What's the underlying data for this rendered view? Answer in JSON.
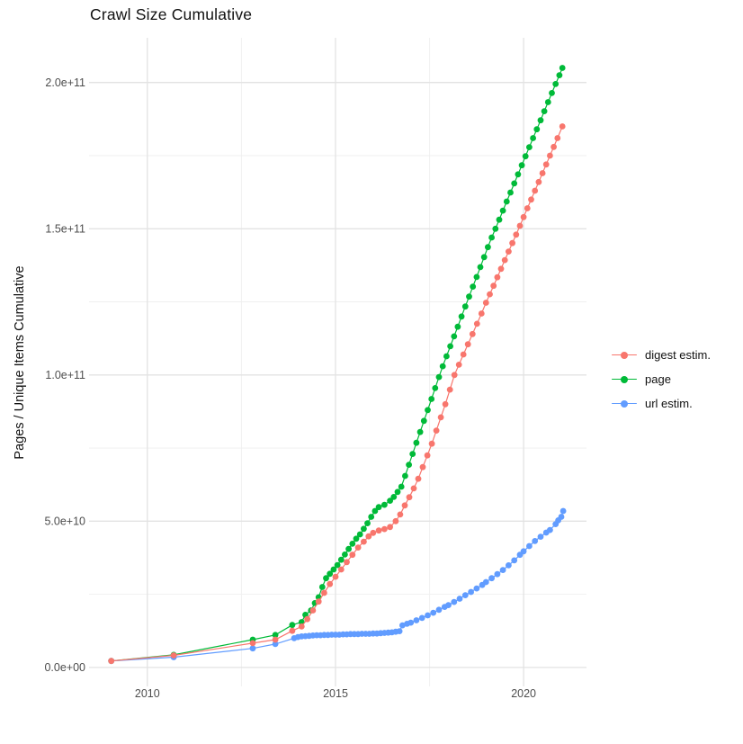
{
  "title": "Crawl Size Cumulative",
  "colors": {
    "digest": "#F8766D",
    "page": "#00BA38",
    "url": "#619CFF",
    "grid_major": "#E3E3E3",
    "grid_minor": "#EFEFEF",
    "tick_label": "#4D4D4D",
    "text": "#111111",
    "background": "#FFFFFF"
  },
  "legend": {
    "position": "right",
    "items": [
      {
        "label": "digest estim.",
        "color": "#F8766D"
      },
      {
        "label": "page",
        "color": "#00BA38"
      },
      {
        "label": "url estim.",
        "color": "#619CFF"
      }
    ]
  },
  "chart_data": {
    "type": "line",
    "mark": "line+point",
    "title": "Crawl Size Cumulative",
    "xlabel": "",
    "ylabel": "Pages / Unique Items Cumulative",
    "value_unit": "1e9 pages (y values below are billions)",
    "x_axis": {
      "ticks": [
        2010,
        2015,
        2020
      ],
      "minor": [
        2012.5,
        2017.5
      ],
      "lim": [
        2008.45,
        2021.67
      ]
    },
    "y_axis": {
      "ticks": [
        {
          "v": 0,
          "label": "0.0e+00"
        },
        {
          "v": 50,
          "label": "5.0e+10"
        },
        {
          "v": 100,
          "label": "1.0e+11"
        },
        {
          "v": 150,
          "label": "1.5e+11"
        },
        {
          "v": 200,
          "label": "2.0e+11"
        }
      ],
      "minor": [
        25,
        75,
        125,
        175
      ],
      "lim": [
        -6.5,
        215.3
      ]
    },
    "grid": "major+minor",
    "legend_position": "right",
    "series": [
      {
        "name": "digest estim.",
        "color": "#F8766D",
        "points": [
          [
            2009.04,
            2.2
          ],
          [
            2010.7,
            4.1
          ],
          [
            2012.8,
            8.3
          ],
          [
            2013.4,
            9.5
          ],
          [
            2013.85,
            12.5
          ],
          [
            2014.1,
            14.0
          ],
          [
            2014.25,
            16.5
          ],
          [
            2014.4,
            19.5
          ],
          [
            2014.55,
            22.5
          ],
          [
            2014.7,
            25.5
          ],
          [
            2014.85,
            28.5
          ],
          [
            2015.0,
            31.0
          ],
          [
            2015.15,
            33.5
          ],
          [
            2015.3,
            36.0
          ],
          [
            2015.45,
            38.5
          ],
          [
            2015.6,
            41.0
          ],
          [
            2015.75,
            43.0
          ],
          [
            2015.88,
            44.8
          ],
          [
            2016.0,
            46.0
          ],
          [
            2016.15,
            46.8
          ],
          [
            2016.3,
            47.3
          ],
          [
            2016.45,
            48.0
          ],
          [
            2016.6,
            50.0
          ],
          [
            2016.72,
            52.3
          ],
          [
            2016.84,
            55.4
          ],
          [
            2016.96,
            58.2
          ],
          [
            2017.08,
            61.2
          ],
          [
            2017.2,
            64.5
          ],
          [
            2017.32,
            68.5
          ],
          [
            2017.44,
            72.5
          ],
          [
            2017.56,
            76.5
          ],
          [
            2017.68,
            81.0
          ],
          [
            2017.8,
            85.5
          ],
          [
            2017.92,
            90.0
          ],
          [
            2018.04,
            95.0
          ],
          [
            2018.16,
            100.0
          ],
          [
            2018.28,
            103.5
          ],
          [
            2018.4,
            107.0
          ],
          [
            2018.52,
            110.5
          ],
          [
            2018.64,
            114.0
          ],
          [
            2018.76,
            117.5
          ],
          [
            2018.88,
            121.0
          ],
          [
            2019.0,
            124.7
          ],
          [
            2019.1,
            127.6
          ],
          [
            2019.2,
            130.5
          ],
          [
            2019.3,
            133.4
          ],
          [
            2019.4,
            136.3
          ],
          [
            2019.5,
            139.3
          ],
          [
            2019.6,
            142.2
          ],
          [
            2019.7,
            145.1
          ],
          [
            2019.8,
            148.0
          ],
          [
            2019.9,
            151.0
          ],
          [
            2020.0,
            154.0
          ],
          [
            2020.1,
            157.0
          ],
          [
            2020.2,
            160.0
          ],
          [
            2020.3,
            163.0
          ],
          [
            2020.4,
            166.0
          ],
          [
            2020.5,
            169.0
          ],
          [
            2020.6,
            172.0
          ],
          [
            2020.7,
            175.0
          ],
          [
            2020.8,
            178.0
          ],
          [
            2020.9,
            181.0
          ],
          [
            2021.03,
            185.0
          ]
        ]
      },
      {
        "name": "page",
        "color": "#00BA38",
        "points": [
          [
            2009.04,
            2.2
          ],
          [
            2010.7,
            4.3
          ],
          [
            2012.8,
            9.5
          ],
          [
            2013.4,
            11.1
          ],
          [
            2013.85,
            14.5
          ],
          [
            2014.1,
            15.5
          ],
          [
            2014.2,
            18.0
          ],
          [
            2014.35,
            19.5
          ],
          [
            2014.45,
            22.0
          ],
          [
            2014.55,
            24.0
          ],
          [
            2014.65,
            27.5
          ],
          [
            2014.75,
            30.5
          ],
          [
            2014.85,
            32.0
          ],
          [
            2014.95,
            33.5
          ],
          [
            2015.05,
            35.0
          ],
          [
            2015.15,
            36.8
          ],
          [
            2015.25,
            38.6
          ],
          [
            2015.35,
            40.5
          ],
          [
            2015.45,
            42.3
          ],
          [
            2015.55,
            44.0
          ],
          [
            2015.65,
            45.5
          ],
          [
            2015.75,
            47.4
          ],
          [
            2015.85,
            49.3
          ],
          [
            2015.95,
            51.5
          ],
          [
            2016.05,
            53.5
          ],
          [
            2016.15,
            54.8
          ],
          [
            2016.3,
            55.6
          ],
          [
            2016.45,
            57.0
          ],
          [
            2016.55,
            58.3
          ],
          [
            2016.65,
            60.0
          ],
          [
            2016.75,
            61.8
          ],
          [
            2016.85,
            65.5
          ],
          [
            2016.95,
            69.3
          ],
          [
            2017.05,
            73.0
          ],
          [
            2017.15,
            76.8
          ],
          [
            2017.25,
            80.5
          ],
          [
            2017.35,
            84.3
          ],
          [
            2017.45,
            88.0
          ],
          [
            2017.55,
            91.8
          ],
          [
            2017.65,
            95.5
          ],
          [
            2017.75,
            99.3
          ],
          [
            2017.85,
            103.0
          ],
          [
            2017.95,
            106.4
          ],
          [
            2018.05,
            109.8
          ],
          [
            2018.15,
            113.2
          ],
          [
            2018.25,
            116.5
          ],
          [
            2018.35,
            120.0
          ],
          [
            2018.45,
            123.4
          ],
          [
            2018.55,
            126.8
          ],
          [
            2018.65,
            130.2
          ],
          [
            2018.75,
            133.5
          ],
          [
            2018.85,
            136.9
          ],
          [
            2018.95,
            140.3
          ],
          [
            2019.05,
            143.7
          ],
          [
            2019.15,
            147.0
          ],
          [
            2019.25,
            150.0
          ],
          [
            2019.35,
            153.1
          ],
          [
            2019.45,
            156.2
          ],
          [
            2019.55,
            159.3
          ],
          [
            2019.65,
            162.4
          ],
          [
            2019.75,
            165.5
          ],
          [
            2019.85,
            168.6
          ],
          [
            2019.95,
            171.7
          ],
          [
            2020.05,
            174.8
          ],
          [
            2020.15,
            177.9
          ],
          [
            2020.25,
            181.0
          ],
          [
            2020.35,
            184.0
          ],
          [
            2020.45,
            187.1
          ],
          [
            2020.55,
            190.2
          ],
          [
            2020.65,
            193.3
          ],
          [
            2020.75,
            196.4
          ],
          [
            2020.85,
            199.5
          ],
          [
            2020.95,
            202.5
          ],
          [
            2021.03,
            205.0
          ]
        ]
      },
      {
        "name": "url estim.",
        "color": "#619CFF",
        "points": [
          [
            2009.04,
            2.2
          ],
          [
            2010.7,
            3.5
          ],
          [
            2012.8,
            6.5
          ],
          [
            2013.4,
            8.0
          ],
          [
            2013.9,
            10.0
          ],
          [
            2014.0,
            10.4
          ],
          [
            2014.1,
            10.6
          ],
          [
            2014.2,
            10.7
          ],
          [
            2014.3,
            10.8
          ],
          [
            2014.4,
            10.9
          ],
          [
            2014.5,
            11.0
          ],
          [
            2014.6,
            11.0
          ],
          [
            2014.7,
            11.1
          ],
          [
            2014.8,
            11.1
          ],
          [
            2014.9,
            11.2
          ],
          [
            2015.0,
            11.2
          ],
          [
            2015.1,
            11.2
          ],
          [
            2015.2,
            11.3
          ],
          [
            2015.3,
            11.3
          ],
          [
            2015.4,
            11.4
          ],
          [
            2015.5,
            11.4
          ],
          [
            2015.6,
            11.4
          ],
          [
            2015.7,
            11.5
          ],
          [
            2015.8,
            11.5
          ],
          [
            2015.9,
            11.5
          ],
          [
            2016.0,
            11.6
          ],
          [
            2016.1,
            11.6
          ],
          [
            2016.2,
            11.7
          ],
          [
            2016.3,
            11.8
          ],
          [
            2016.4,
            11.9
          ],
          [
            2016.5,
            12.0
          ],
          [
            2016.6,
            12.2
          ],
          [
            2016.7,
            12.4
          ],
          [
            2016.78,
            14.4
          ],
          [
            2016.9,
            14.9
          ],
          [
            2017.0,
            15.3
          ],
          [
            2017.15,
            16.1
          ],
          [
            2017.3,
            16.9
          ],
          [
            2017.45,
            17.8
          ],
          [
            2017.6,
            18.7
          ],
          [
            2017.75,
            19.7
          ],
          [
            2017.9,
            20.7
          ],
          [
            2018.0,
            21.3
          ],
          [
            2018.15,
            22.4
          ],
          [
            2018.3,
            23.5
          ],
          [
            2018.45,
            24.7
          ],
          [
            2018.6,
            25.8
          ],
          [
            2018.75,
            27.0
          ],
          [
            2018.9,
            28.2
          ],
          [
            2019.0,
            29.2
          ],
          [
            2019.15,
            30.5
          ],
          [
            2019.3,
            31.9
          ],
          [
            2019.45,
            33.3
          ],
          [
            2019.6,
            34.9
          ],
          [
            2019.75,
            36.6
          ],
          [
            2019.9,
            38.5
          ],
          [
            2020.0,
            39.7
          ],
          [
            2020.15,
            41.5
          ],
          [
            2020.3,
            43.2
          ],
          [
            2020.45,
            44.7
          ],
          [
            2020.6,
            46.1
          ],
          [
            2020.7,
            47.0
          ],
          [
            2020.85,
            49.0
          ],
          [
            2020.92,
            50.3
          ],
          [
            2021.0,
            51.5
          ],
          [
            2021.05,
            53.5
          ]
        ]
      }
    ]
  }
}
